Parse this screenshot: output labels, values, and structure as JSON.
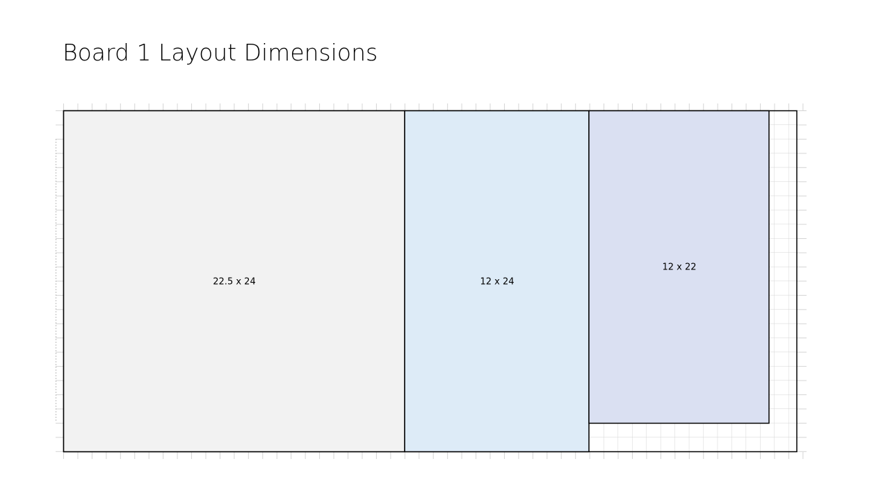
{
  "header": {
    "title": "Board 1 Layout Dimensions"
  },
  "pieces": [
    {
      "label": "22.5 x 24"
    },
    {
      "label": "12 x 24"
    },
    {
      "label": "12 x 22"
    }
  ]
}
